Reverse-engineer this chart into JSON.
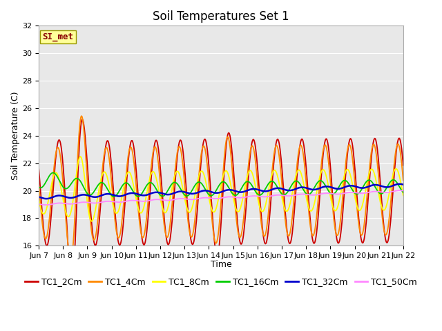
{
  "title": "Soil Temperatures Set 1",
  "xlabel": "Time",
  "ylabel": "Soil Temperature (C)",
  "ylim": [
    16,
    32
  ],
  "yticks": [
    16,
    18,
    20,
    22,
    24,
    26,
    28,
    30,
    32
  ],
  "x_labels": [
    "Jun 7",
    "Jun 8",
    "Jun 9",
    "Jun 10",
    "Jun 11",
    "Jun 12",
    "Jun 13",
    "Jun 14",
    "Jun 15",
    "Jun 16",
    "Jun 17",
    "Jun 18",
    "Jun 19",
    "Jun 20",
    "Jun 21",
    "Jun 22"
  ],
  "series_colors": [
    "#cc0000",
    "#ff8800",
    "#ffff00",
    "#00cc00",
    "#0000cc",
    "#ff88ff"
  ],
  "series_labels": [
    "TC1_2Cm",
    "TC1_4Cm",
    "TC1_8Cm",
    "TC1_16Cm",
    "TC1_32Cm",
    "TC1_50Cm"
  ],
  "annotation_text": "SI_met",
  "annotation_bg": "#ffff99",
  "annotation_border": "#999900",
  "annotation_text_color": "#880000",
  "background_color": "#e8e8e8",
  "fig_bg": "#ffffff",
  "title_fontsize": 12,
  "axis_label_fontsize": 9,
  "tick_fontsize": 8,
  "legend_fontsize": 9
}
